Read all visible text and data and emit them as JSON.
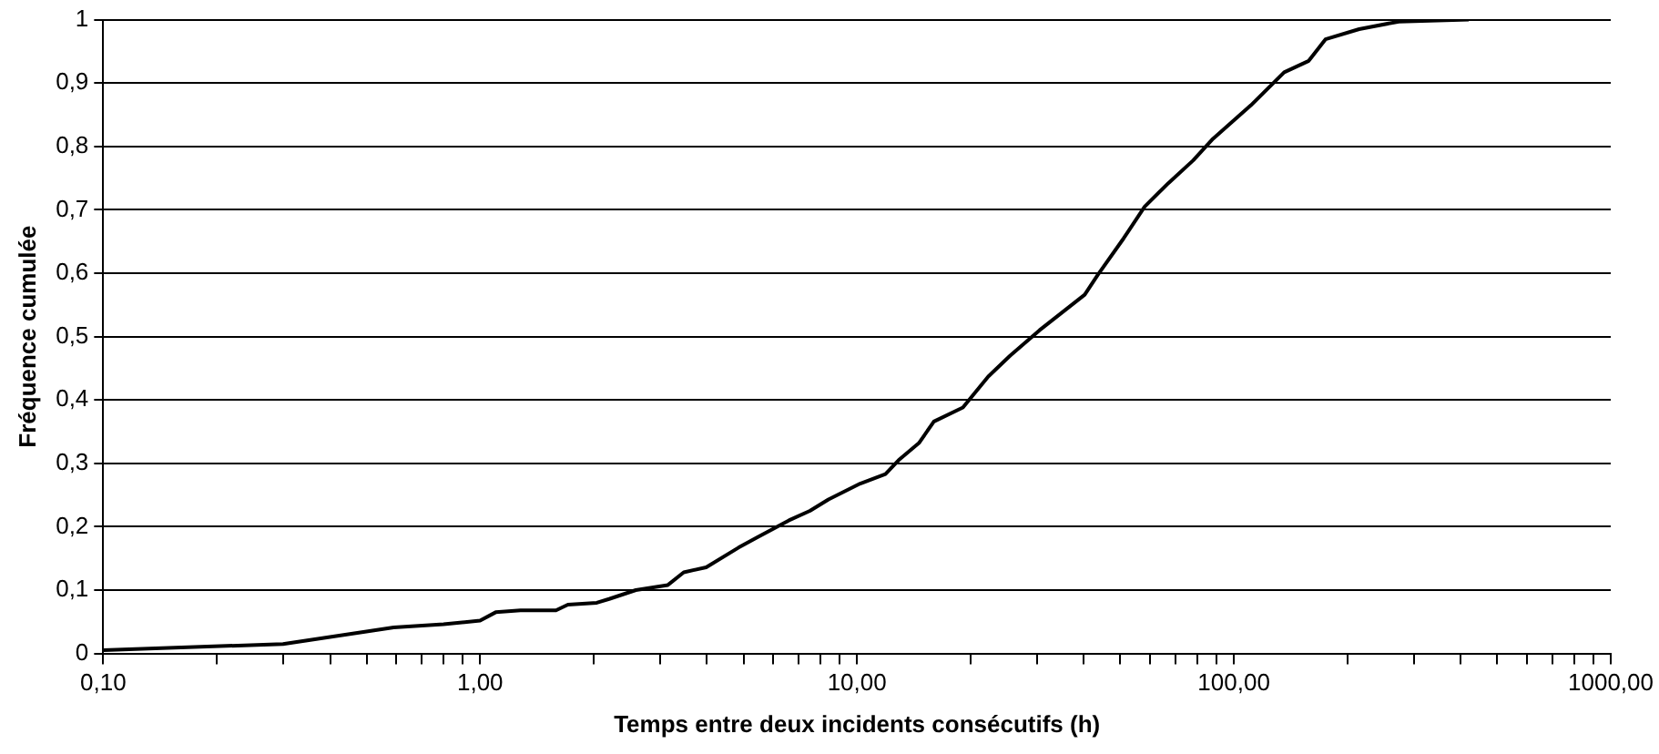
{
  "chart_data": {
    "type": "line",
    "xlabel": "Temps entre deux incidents consécutifs (h)",
    "ylabel": "Fréquence cumulée",
    "log": "x",
    "grid": "y",
    "legend": false,
    "marker": "none",
    "line_style": "solid",
    "xlim": [
      0.1,
      1000
    ],
    "ylim": [
      0,
      1
    ],
    "xticks": [
      {
        "value": 0.1,
        "label": "0,10"
      },
      {
        "value": 0.2,
        "label": null
      },
      {
        "value": 0.3,
        "label": null
      },
      {
        "value": 0.4,
        "label": null
      },
      {
        "value": 0.5,
        "label": null
      },
      {
        "value": 0.6,
        "label": null
      },
      {
        "value": 0.7,
        "label": null
      },
      {
        "value": 0.8,
        "label": null
      },
      {
        "value": 0.9,
        "label": null
      },
      {
        "value": 1,
        "label": "1,00"
      },
      {
        "value": 2,
        "label": null
      },
      {
        "value": 3,
        "label": null
      },
      {
        "value": 4,
        "label": null
      },
      {
        "value": 5,
        "label": null
      },
      {
        "value": 6,
        "label": null
      },
      {
        "value": 7,
        "label": null
      },
      {
        "value": 8,
        "label": null
      },
      {
        "value": 9,
        "label": null
      },
      {
        "value": 10,
        "label": "10,00"
      },
      {
        "value": 20,
        "label": null
      },
      {
        "value": 30,
        "label": null
      },
      {
        "value": 40,
        "label": null
      },
      {
        "value": 50,
        "label": null
      },
      {
        "value": 60,
        "label": null
      },
      {
        "value": 70,
        "label": null
      },
      {
        "value": 80,
        "label": null
      },
      {
        "value": 90,
        "label": null
      },
      {
        "value": 100,
        "label": "100,00"
      },
      {
        "value": 200,
        "label": null
      },
      {
        "value": 300,
        "label": null
      },
      {
        "value": 400,
        "label": null
      },
      {
        "value": 500,
        "label": null
      },
      {
        "value": 600,
        "label": null
      },
      {
        "value": 700,
        "label": null
      },
      {
        "value": 800,
        "label": null
      },
      {
        "value": 900,
        "label": null
      },
      {
        "value": 1000,
        "label": "1000,00"
      }
    ],
    "yticks": [
      0,
      {
        "value": 0.1,
        "label": "0,1"
      },
      {
        "value": 0.2,
        "label": "0,2"
      },
      {
        "value": 0.3,
        "label": "0,3"
      },
      {
        "value": 0.4,
        "label": "0,4"
      },
      {
        "value": 0.5,
        "label": "0,5"
      },
      {
        "value": 0.6,
        "label": "0,6"
      },
      {
        "value": 0.7,
        "label": "0,7"
      },
      {
        "value": 0.8,
        "label": "0,8"
      },
      {
        "value": 0.9,
        "label": "0,9"
      },
      1
    ],
    "series": [
      {
        "color": "#000000",
        "x": [
          0.1,
          0.3,
          0.59,
          0.8,
          1.0,
          1.1,
          1.28,
          1.59,
          1.71,
          2.04,
          2.2,
          2.59,
          3.15,
          3.47,
          3.98,
          4.85,
          5.47,
          6.6,
          7.5,
          8.4,
          10.2,
          11.9,
          12.9,
          14.6,
          16.0,
          19.1,
          22.3,
          25.5,
          30.5,
          40.2,
          43.5,
          51,
          58,
          67,
          78,
          88,
          111,
          136,
          158,
          175,
          215,
          274,
          420
        ],
        "values": [
          0.005,
          0.015,
          0.041,
          0.046,
          0.052,
          0.065,
          0.068,
          0.068,
          0.077,
          0.08,
          0.086,
          0.1,
          0.108,
          0.128,
          0.136,
          0.167,
          0.184,
          0.21,
          0.225,
          0.243,
          0.268,
          0.283,
          0.305,
          0.332,
          0.366,
          0.388,
          0.437,
          0.47,
          0.51,
          0.566,
          0.597,
          0.655,
          0.705,
          0.742,
          0.778,
          0.812,
          0.865,
          0.917,
          0.935,
          0.969,
          0.985,
          0.997,
          1.0
        ]
      }
    ]
  }
}
